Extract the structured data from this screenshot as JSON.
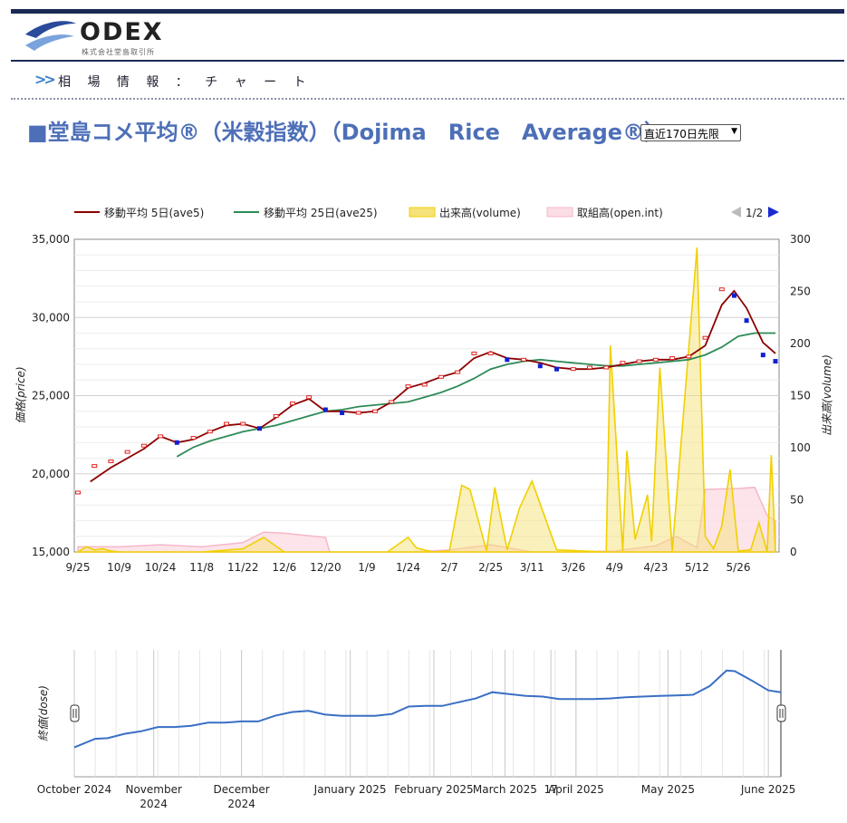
{
  "header": {
    "logo_text": "ODEX",
    "logo_subtext": "株式会社堂島取引所",
    "breadcrumb": "相 場 情 報 ： チ ャ ー ト",
    "breadcrumb_icon": "double-chevron-right-icon"
  },
  "page": {
    "title": "■堂島コメ平均®（米穀指数）（Dojima　Rice　Average®）",
    "period_select": "直近170日先限"
  },
  "colors": {
    "title": "#4d6fb8",
    "ave5": "#8b0000",
    "ave25": "#2e8b57",
    "volume": "#f0d000",
    "open_int": "#f5b8c8",
    "price_up": "#e02020",
    "price_down": "#1020d0",
    "navigator": "#3a6fc4"
  },
  "legend": {
    "items": [
      "移動平均 5日(ave5)",
      "移動平均 25日(ave25)",
      "出来高(volume)",
      "取組高(open.int)"
    ],
    "pager": "1/2"
  },
  "chart_data": [
    {
      "type": "line",
      "ylabel_left": "価格(price)",
      "ylabel_right": "出来高(volume)",
      "ylim_left": [
        15000,
        35000
      ],
      "ylim_right": [
        0,
        300
      ],
      "y_ticks_left": [
        "35,000",
        "30,000",
        "25,000",
        "20,000",
        "15,000"
      ],
      "y_ticks_right": [
        "300",
        "250",
        "200",
        "150",
        "100",
        "50",
        "0"
      ],
      "x_ticks": [
        "9/25",
        "10/9",
        "10/24",
        "11/8",
        "11/22",
        "12/6",
        "12/20",
        "1/9",
        "1/24",
        "2/7",
        "2/25",
        "3/11",
        "3/26",
        "4/9",
        "4/23",
        "5/12",
        "5/26"
      ],
      "x_tick_index": [
        0,
        10,
        20,
        30,
        40,
        50,
        60,
        70,
        80,
        90,
        100,
        110,
        120,
        130,
        140,
        150,
        160
      ],
      "n_days": 170,
      "price": {
        "index": [
          0,
          4,
          8,
          12,
          16,
          20,
          24,
          28,
          32,
          36,
          40,
          44,
          48,
          52,
          56,
          60,
          64,
          68,
          72,
          76,
          80,
          84,
          88,
          92,
          96,
          100,
          104,
          108,
          112,
          116,
          120,
          124,
          128,
          132,
          136,
          140,
          144,
          148,
          152,
          156,
          159,
          162,
          166,
          169
        ],
        "close": [
          18800,
          20500,
          20800,
          21400,
          21800,
          22400,
          22000,
          22300,
          22700,
          23200,
          23200,
          22900,
          23700,
          24500,
          24900,
          24100,
          23900,
          23900,
          24000,
          24600,
          25600,
          25700,
          26200,
          26500,
          27700,
          27700,
          27300,
          27300,
          26900,
          26700,
          26700,
          26800,
          26800,
          27100,
          27200,
          27300,
          27400,
          27500,
          28700,
          31800,
          31400,
          29800,
          27600,
          27200
        ]
      },
      "ave5": {
        "index": [
          3,
          8,
          12,
          16,
          20,
          24,
          28,
          32,
          36,
          40,
          44,
          48,
          52,
          56,
          60,
          64,
          68,
          72,
          76,
          80,
          84,
          88,
          92,
          96,
          100,
          104,
          108,
          112,
          116,
          120,
          124,
          128,
          132,
          136,
          140,
          144,
          148,
          152,
          156,
          159,
          162,
          166,
          169
        ],
        "values": [
          19500,
          20400,
          21000,
          21600,
          22400,
          22000,
          22200,
          22700,
          23100,
          23200,
          22900,
          23600,
          24400,
          24800,
          24000,
          24000,
          23900,
          24000,
          24600,
          25500,
          25800,
          26200,
          26500,
          27400,
          27800,
          27400,
          27300,
          27100,
          26800,
          26700,
          26700,
          26800,
          27000,
          27200,
          27300,
          27300,
          27500,
          28200,
          30800,
          31700,
          30600,
          28400,
          27700
        ]
      },
      "ave25": {
        "index": [
          24,
          28,
          32,
          36,
          40,
          44,
          48,
          52,
          56,
          60,
          64,
          68,
          72,
          76,
          80,
          84,
          88,
          92,
          96,
          100,
          104,
          108,
          112,
          116,
          120,
          124,
          128,
          132,
          136,
          140,
          144,
          148,
          152,
          156,
          160,
          164,
          169
        ],
        "values": [
          21100,
          21700,
          22100,
          22400,
          22700,
          22900,
          23100,
          23400,
          23700,
          24000,
          24100,
          24300,
          24400,
          24500,
          24600,
          24900,
          25200,
          25600,
          26100,
          26700,
          27000,
          27200,
          27300,
          27200,
          27100,
          27000,
          26900,
          26900,
          27000,
          27100,
          27200,
          27300,
          27600,
          28100,
          28800,
          29000,
          29000
        ]
      },
      "volume": {
        "index": [
          0,
          2,
          4,
          6,
          8,
          10,
          20,
          30,
          40,
          45,
          50,
          60,
          75,
          80,
          82,
          86,
          90,
          93,
          95,
          99,
          101,
          104,
          107,
          110,
          116,
          128,
          129,
          132,
          133,
          135,
          138,
          139,
          141,
          144,
          150,
          152,
          154,
          156,
          158,
          160,
          163,
          165,
          167,
          168,
          169
        ],
        "values": [
          0,
          5,
          2,
          3,
          1,
          0,
          0,
          0,
          3,
          14,
          0,
          0,
          0,
          14,
          4,
          0,
          1,
          64,
          60,
          1,
          62,
          2,
          42,
          68,
          2,
          0,
          198,
          1,
          97,
          12,
          55,
          10,
          177,
          1,
          292,
          15,
          3,
          25,
          79,
          1,
          2,
          28,
          0,
          93,
          0
        ]
      },
      "open_int": {
        "index": [
          0,
          10,
          20,
          30,
          40,
          45,
          50,
          60,
          61,
          75,
          80,
          90,
          100,
          110,
          120,
          130,
          140,
          145,
          150,
          152,
          160,
          164,
          167,
          169
        ],
        "values": [
          5,
          5,
          7,
          5,
          9,
          19,
          18,
          14,
          0,
          0,
          0,
          2,
          7,
          0,
          0,
          1,
          6,
          15,
          4,
          60,
          61,
          62,
          35,
          30
        ]
      }
    },
    {
      "type": "line",
      "ylabel": "終値(dose)",
      "x_ticks": [
        "October 2024",
        "November 2024",
        "December 2024",
        "January 2025",
        "February 2025",
        "March 2025",
        "17",
        "April 2025",
        "May 2025",
        "June 2025"
      ],
      "x_tick_index": [
        0,
        19,
        40,
        66,
        86,
        103,
        114,
        120,
        142,
        166
      ],
      "ylim": [
        15000,
        34000
      ],
      "close": {
        "index": [
          0,
          5,
          8,
          12,
          16,
          20,
          24,
          28,
          32,
          36,
          40,
          44,
          48,
          52,
          56,
          60,
          64,
          68,
          72,
          76,
          80,
          84,
          88,
          92,
          96,
          100,
          104,
          108,
          112,
          116,
          120,
          124,
          128,
          132,
          136,
          140,
          144,
          148,
          152,
          156,
          158,
          162,
          166,
          169
        ],
        "values": [
          19000,
          20400,
          20500,
          21200,
          21600,
          22300,
          22300,
          22500,
          23000,
          23000,
          23200,
          23200,
          24100,
          24700,
          24900,
          24300,
          24100,
          24100,
          24100,
          24400,
          25600,
          25700,
          25700,
          26300,
          26900,
          27900,
          27600,
          27300,
          27200,
          26800,
          26800,
          26800,
          26900,
          27100,
          27200,
          27300,
          27400,
          27500,
          28900,
          31400,
          31300,
          29800,
          28200,
          27900
        ]
      }
    }
  ]
}
